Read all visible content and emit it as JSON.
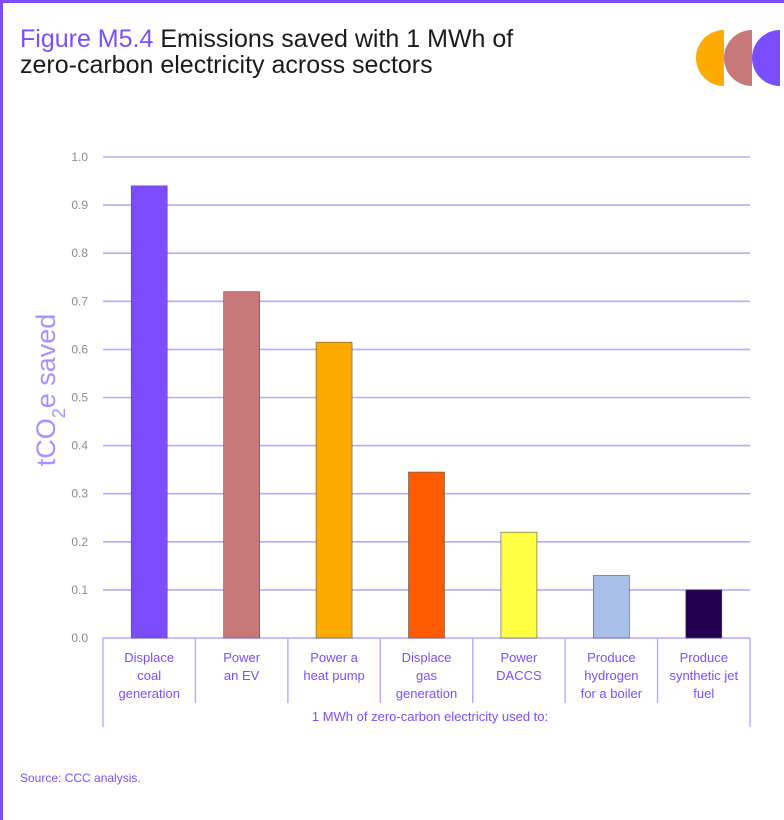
{
  "header": {
    "figure_label": "Figure M5.4",
    "title_line1": "Emissions saved with 1 MWh of",
    "title_line2": "zero-carbon electricity across sectors"
  },
  "logo": {
    "colors": [
      "#ffaa00",
      "#c87878",
      "#7b4dff"
    ]
  },
  "source": "Source: CCC analysis.",
  "chart_data": {
    "type": "bar",
    "categories": [
      [
        "Displace",
        "coal",
        "generation"
      ],
      [
        "Power",
        "an EV"
      ],
      [
        "Power a",
        "heat pump"
      ],
      [
        "Displace",
        "gas",
        "generation"
      ],
      [
        "Power",
        "DACCS"
      ],
      [
        "Produce",
        "hydrogen",
        "for a boiler"
      ],
      [
        "Produce",
        "synthetic jet",
        "fuel"
      ]
    ],
    "values": [
      0.94,
      0.72,
      0.615,
      0.345,
      0.22,
      0.13,
      0.1
    ],
    "colors": [
      "#7b4dff",
      "#c87878",
      "#ffaa00",
      "#ff5a00",
      "#ffff44",
      "#a8bfea",
      "#22004d"
    ],
    "ylabel_prefix": "tCO",
    "ylabel_sub": "2",
    "ylabel_suffix": "e saved",
    "xlabel": "1 MWh of zero-carbon electricity used to:",
    "ylim": [
      0,
      1.0
    ],
    "yticks": [
      "0.0",
      "0.1",
      "0.2",
      "0.3",
      "0.4",
      "0.5",
      "0.6",
      "0.7",
      "0.8",
      "0.9",
      "1.0"
    ],
    "grid": true,
    "grid_color": "#b9a8ff"
  }
}
